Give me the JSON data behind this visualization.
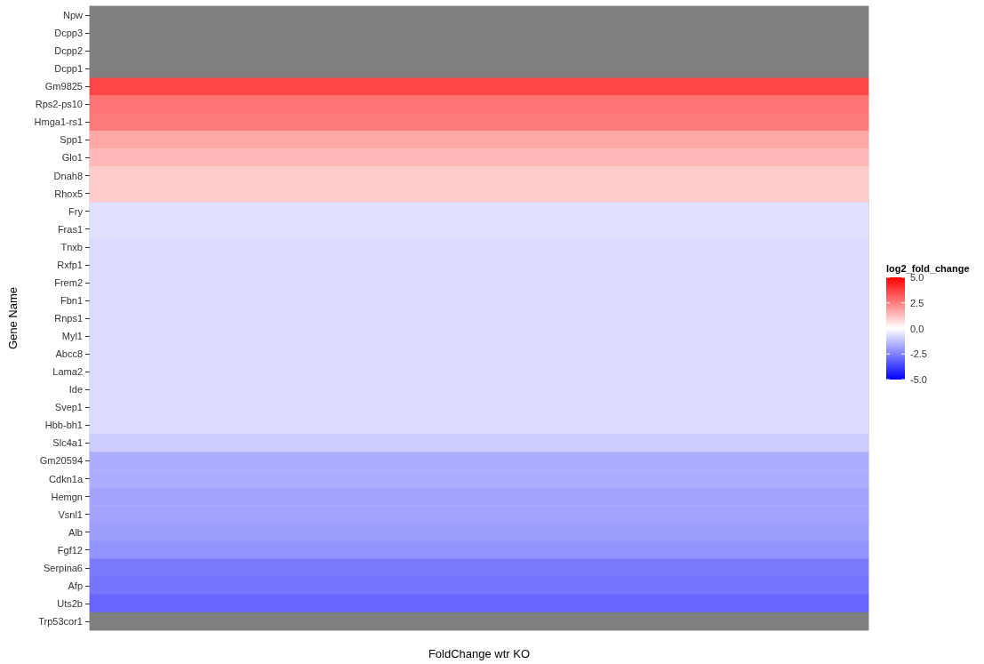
{
  "chart_data": {
    "type": "heatmap",
    "xlabel": "FoldChange wtr KO",
    "ylabel": "Gene Name",
    "clabel": "log2_fold_change",
    "categories": [
      null
    ],
    "y_categories": [
      "Npw",
      "Dcpp3",
      "Dcpp2",
      "Dcpp1",
      "Gm9825",
      "Rps2-ps10",
      "Hmga1-rs1",
      "Spp1",
      "Glo1",
      "Dnah8",
      "Rhox5",
      "Fry",
      "Fras1",
      "Tnxb",
      "Rxfp1",
      "Frem2",
      "Fbn1",
      "Rnps1",
      "Myl1",
      "Abcc8",
      "Lama2",
      "Ide",
      "Svep1",
      "Hbb-bh1",
      "Slc4a1",
      "Gm20594",
      "Cdkn1a",
      "Hemgn",
      "Vsnl1",
      "Alb",
      "Fgf12",
      "Serpina6",
      "Afp",
      "Uts2b",
      "Trp53cor1"
    ],
    "cells": [
      [
        null
      ],
      [
        null
      ],
      [
        null
      ],
      [
        null
      ],
      [
        3.6
      ],
      [
        2.7
      ],
      [
        2.6
      ],
      [
        1.7
      ],
      [
        1.4
      ],
      [
        1.0
      ],
      [
        1.0
      ],
      [
        -0.6
      ],
      [
        -0.6
      ],
      [
        -0.7
      ],
      [
        -0.7
      ],
      [
        -0.7
      ],
      [
        -0.7
      ],
      [
        -0.7
      ],
      [
        -0.7
      ],
      [
        -0.7
      ],
      [
        -0.7
      ],
      [
        -0.7
      ],
      [
        -0.7
      ],
      [
        -0.7
      ],
      [
        -1.0
      ],
      [
        -1.6
      ],
      [
        -1.6
      ],
      [
        -1.8
      ],
      [
        -1.8
      ],
      [
        -1.9
      ],
      [
        -2.1
      ],
      [
        -2.6
      ],
      [
        -2.7
      ],
      [
        -3.0
      ],
      [
        null
      ]
    ],
    "clim": [
      -5,
      5
    ],
    "cticks": [
      {
        "value": 5,
        "label": "5.0"
      },
      {
        "value": 2.5,
        "label": "2.5"
      },
      {
        "value": 0,
        "label": "0.0"
      },
      {
        "value": -2.5,
        "label": "-2.5"
      },
      {
        "value": -5,
        "label": "-5.0"
      }
    ],
    "tick_labels": "y",
    "grid": false
  }
}
